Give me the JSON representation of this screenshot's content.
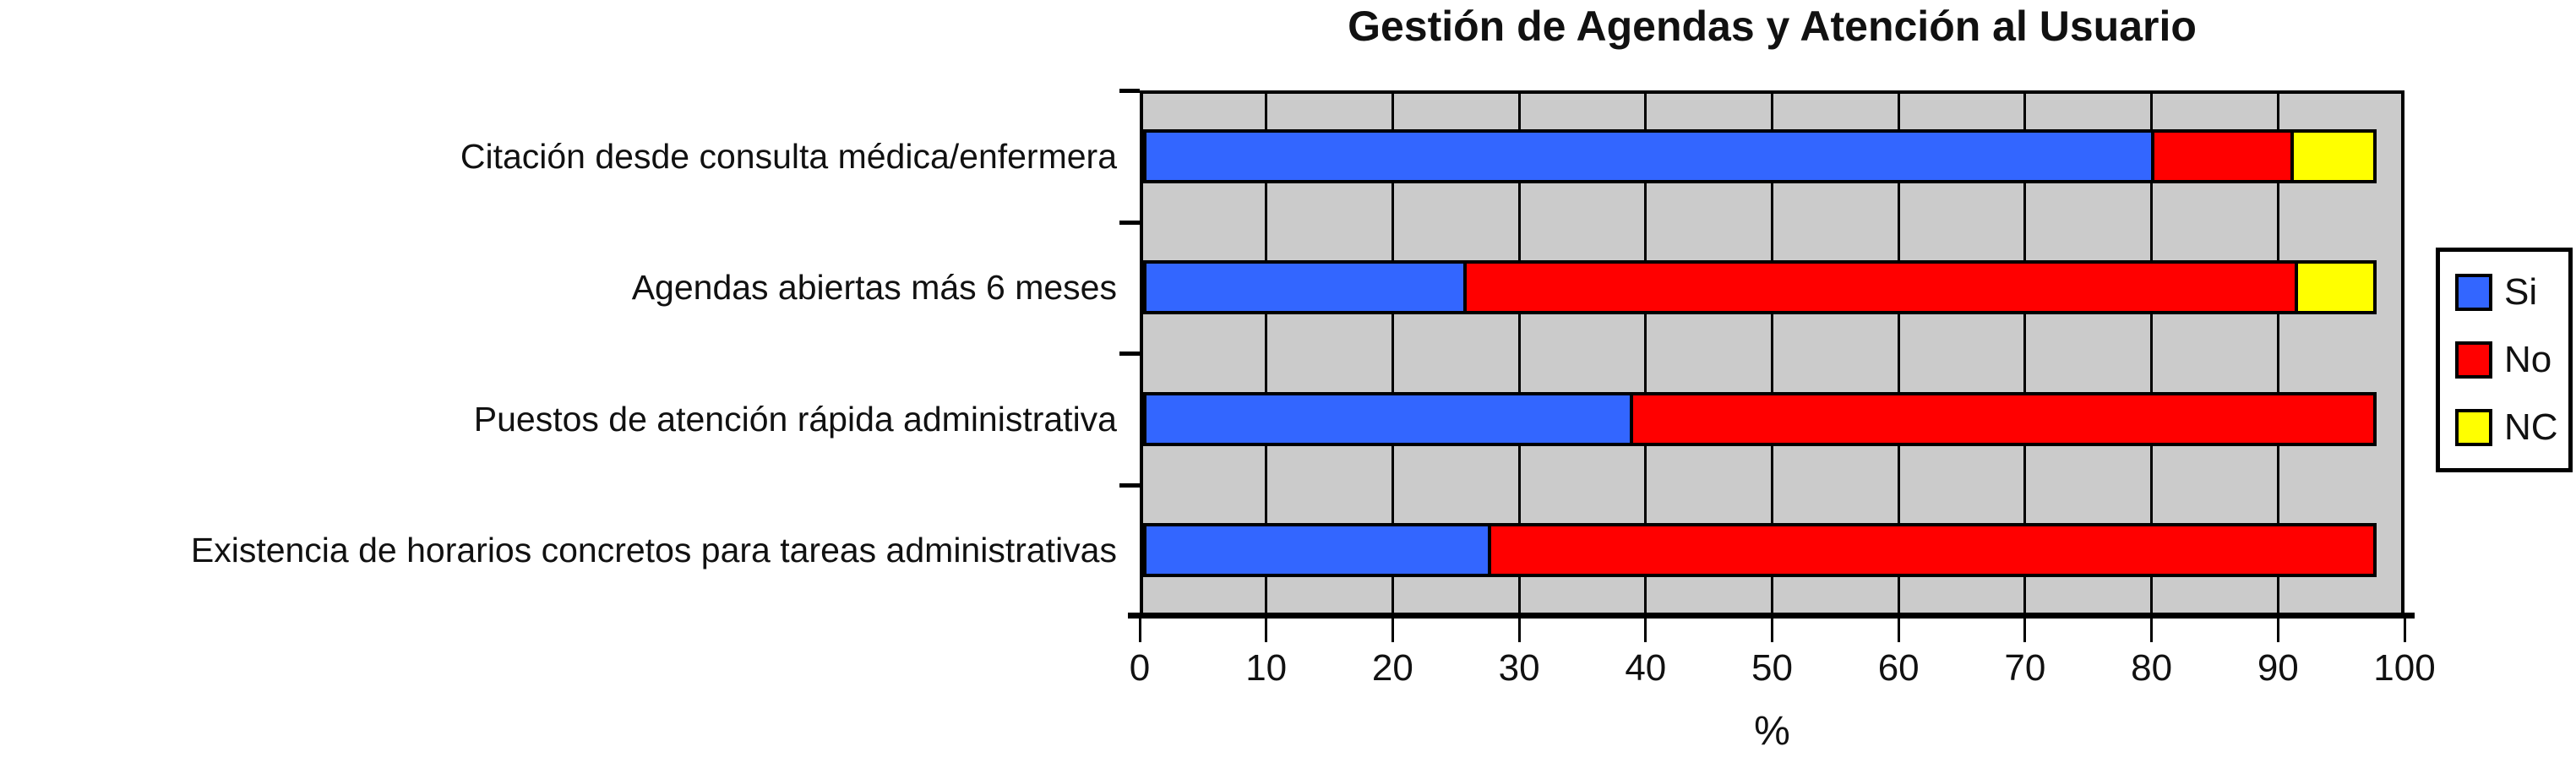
{
  "chart_data": {
    "type": "bar",
    "orientation": "horizontal",
    "stacked": true,
    "title": "Gestión de Agendas y Atención al Usuario",
    "categories": [
      "Citación desde consulta médica/enfermera",
      "Agendas abiertas más 6 meses",
      "Puestos de atención rápida administrativa",
      "Existencia de horarios concretos para tareas administrativas"
    ],
    "series": [
      {
        "name": "Si",
        "color": "#3366ff",
        "values": [
          80.3,
          25.3,
          38.5,
          27.2
        ]
      },
      {
        "name": "No",
        "color": "#ff0000",
        "values": [
          10.9,
          66.2,
          59.0,
          70.3
        ]
      },
      {
        "name": "NC",
        "color": "#ffff00",
        "values": [
          6.3,
          6.0,
          0,
          0
        ]
      }
    ],
    "xlabel": "%",
    "xlim": [
      0,
      100
    ],
    "xticks": [
      0,
      10,
      20,
      30,
      40,
      50,
      60,
      70,
      80,
      90,
      100
    ],
    "grid": "vertical",
    "legend_position": "right",
    "plot_background": "#cbcbcb",
    "bar_outline": "#000000"
  }
}
